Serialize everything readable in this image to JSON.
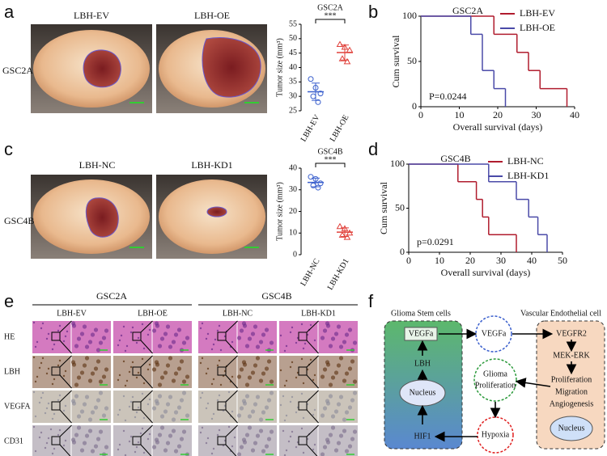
{
  "panels": {
    "a": {
      "label": "a",
      "row_label": "GSC2A",
      "image_labels": [
        "LBH-EV",
        "LBH-OE"
      ]
    },
    "b": {
      "label": "b"
    },
    "c": {
      "label": "c",
      "row_label": "GSC4B",
      "image_labels": [
        "LBH-NC",
        "LBH-KD1"
      ]
    },
    "d": {
      "label": "d"
    },
    "e": {
      "label": "e",
      "groups": [
        "GSC2A",
        "GSC4B"
      ],
      "columns": [
        "LBH-EV",
        "LBH-OE",
        "LBH-NC",
        "LBH-KD1"
      ],
      "rows": [
        "HE",
        "LBH",
        "VEGFA",
        "CD31"
      ]
    },
    "f": {
      "label": "f",
      "left_title": "Glioma Stem cells",
      "right_title": "Vascular Endothelial cell",
      "nodes": [
        "VEGFa",
        "LBH",
        "Nucleus",
        "HIF1",
        "VEGFa",
        "VEGFR2",
        "MEK-ERK",
        "Proliferation",
        "Migration",
        "Angiogenesis",
        "Nucleus",
        "Glioma",
        "Proliferation",
        "Hypoxia"
      ]
    }
  },
  "chart_data": [
    {
      "type": "dot",
      "title": "GSC2A",
      "ylabel": "Tumor size (mm³)",
      "ylim": [
        25,
        55
      ],
      "yticks": [
        25,
        30,
        35,
        40,
        45,
        50,
        55
      ],
      "significance": "***",
      "series": [
        {
          "name": "LBH-EV",
          "color": "#3a5fcd",
          "marker": "circle",
          "values": [
            36,
            33,
            31,
            30,
            28
          ],
          "mean": 31.6,
          "sd": 3.0
        },
        {
          "name": "LBH-OE",
          "color": "#e0403a",
          "marker": "triangle",
          "values": [
            48,
            47,
            46,
            43,
            42
          ],
          "mean": 45.2,
          "sd": 2.6
        }
      ]
    },
    {
      "type": "survival",
      "title": "GSC2A",
      "xlabel": "Overall  survival (days)",
      "ylabel": "Cum survival",
      "xlim": [
        0,
        40
      ],
      "xticks": [
        0,
        10,
        20,
        30,
        40
      ],
      "ylim": [
        0,
        100
      ],
      "yticks": [
        0,
        50,
        100
      ],
      "annotation": "P=0.0244",
      "series": [
        {
          "name": "LBH-EV",
          "color": "#b01c2e",
          "x": [
            0,
            19,
            25,
            28,
            31,
            38
          ],
          "values": [
            100,
            80,
            60,
            40,
            20,
            0
          ]
        },
        {
          "name": "LBH-OE",
          "color": "#4a4aa8",
          "x": [
            0,
            13,
            16,
            19,
            22
          ],
          "values": [
            100,
            80,
            40,
            20,
            0
          ]
        }
      ]
    },
    {
      "type": "dot",
      "title": "GSC4B",
      "ylabel": "Tumor size (mm³)",
      "ylim": [
        0,
        40
      ],
      "yticks": [
        0,
        10,
        20,
        30,
        40
      ],
      "significance": "***",
      "series": [
        {
          "name": "LBH-NC",
          "color": "#3a5fcd",
          "marker": "circle",
          "values": [
            36,
            35,
            33,
            32,
            31
          ],
          "mean": 33.4,
          "sd": 2.0
        },
        {
          "name": "LBH-KD1",
          "color": "#e0403a",
          "marker": "triangle",
          "values": [
            13,
            12,
            10,
            9,
            8
          ],
          "mean": 10.4,
          "sd": 2.0
        }
      ]
    },
    {
      "type": "survival",
      "title": "GSC4B",
      "xlabel": "Overall  survival (days)",
      "ylabel": "Cum survival",
      "xlim": [
        0,
        50
      ],
      "xticks": [
        0,
        10,
        20,
        30,
        40,
        50
      ],
      "ylim": [
        0,
        100
      ],
      "yticks": [
        0,
        50,
        100
      ],
      "annotation": "p=0.0291",
      "series": [
        {
          "name": "LBH-NC",
          "color": "#b01c2e",
          "x": [
            0,
            16,
            22,
            24,
            26,
            35
          ],
          "values": [
            100,
            80,
            60,
            40,
            20,
            0
          ]
        },
        {
          "name": "LBH-KD1",
          "color": "#4a4aa8",
          "x": [
            0,
            26,
            35,
            39,
            42,
            45
          ],
          "values": [
            100,
            80,
            60,
            40,
            20,
            0
          ]
        }
      ]
    }
  ]
}
